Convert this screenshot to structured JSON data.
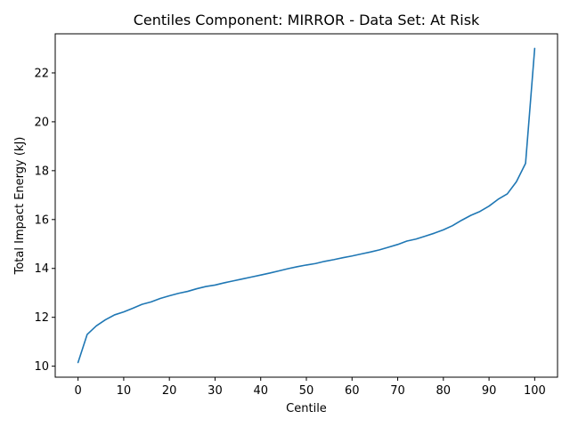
{
  "chart_data": {
    "type": "line",
    "title": "Centiles Component: MIRROR - Data Set: At Risk",
    "xlabel": "Centile",
    "ylabel": "Total Impact Energy (kJ)",
    "xlim": [
      -5,
      105
    ],
    "ylim": [
      9.55,
      23.6
    ],
    "xticks": [
      0,
      10,
      20,
      30,
      40,
      50,
      60,
      70,
      80,
      90,
      100
    ],
    "yticks": [
      10,
      12,
      14,
      16,
      18,
      20,
      22
    ],
    "grid": false,
    "series": [
      {
        "color": "#1f77b4",
        "x": [
          0,
          2,
          4,
          6,
          8,
          10,
          12,
          14,
          16,
          18,
          20,
          22,
          24,
          26,
          28,
          30,
          32,
          34,
          36,
          38,
          40,
          42,
          44,
          46,
          48,
          50,
          52,
          54,
          56,
          58,
          60,
          62,
          64,
          66,
          68,
          70,
          72,
          74,
          76,
          78,
          80,
          82,
          84,
          86,
          88,
          90,
          92,
          94,
          96,
          98,
          100
        ],
        "y": [
          10.15,
          11.3,
          11.65,
          11.9,
          12.1,
          12.22,
          12.37,
          12.53,
          12.63,
          12.77,
          12.88,
          12.98,
          13.06,
          13.17,
          13.26,
          13.32,
          13.41,
          13.49,
          13.57,
          13.65,
          13.73,
          13.81,
          13.9,
          13.99,
          14.07,
          14.14,
          14.2,
          14.29,
          14.36,
          14.44,
          14.51,
          14.59,
          14.67,
          14.76,
          14.87,
          14.98,
          15.12,
          15.2,
          15.32,
          15.44,
          15.58,
          15.75,
          15.97,
          16.17,
          16.33,
          16.55,
          16.83,
          17.05,
          17.55,
          18.3,
          23.0
        ]
      }
    ]
  }
}
